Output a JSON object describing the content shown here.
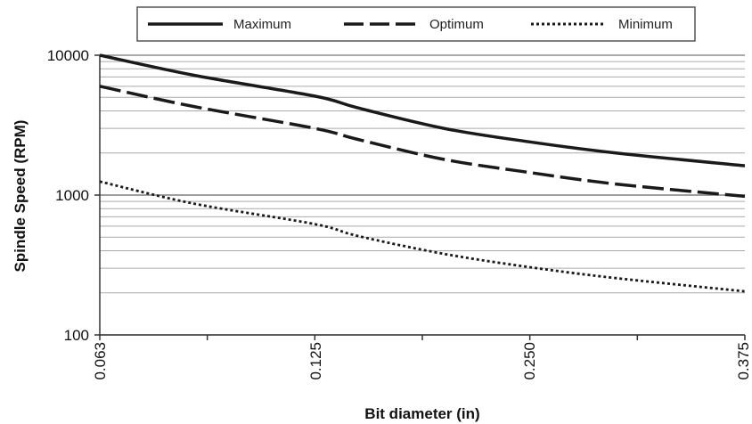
{
  "chart_data": {
    "type": "line",
    "xlabel": "Bit diameter (in)",
    "ylabel": "Spindle Speed (RPM)",
    "x_ticks": [
      "0.063",
      "0.125",
      "0.250",
      "0.375"
    ],
    "x_tick_values": [
      0.063,
      0.125,
      0.25,
      0.375
    ],
    "y_scale": "log",
    "ylim": [
      100,
      10000
    ],
    "y_ticks": [
      "100",
      "1000",
      "10000"
    ],
    "y_tick_values": [
      100,
      1000,
      10000
    ],
    "grid": "horizontal minor log gridlines",
    "legend_position": "top",
    "series": [
      {
        "name": "Maximum",
        "style": "solid",
        "color": "#1a1a1a",
        "x": [
          0.063,
          0.09,
          0.125,
          0.15,
          0.2,
          0.25,
          0.3,
          0.375
        ],
        "y": [
          10000,
          7200,
          5100,
          4200,
          3000,
          2400,
          2000,
          1620
        ]
      },
      {
        "name": "Optimum",
        "style": "dashed",
        "color": "#1a1a1a",
        "x": [
          0.063,
          0.09,
          0.125,
          0.15,
          0.2,
          0.25,
          0.3,
          0.375
        ],
        "y": [
          6000,
          4300,
          3000,
          2500,
          1800,
          1450,
          1200,
          980
        ]
      },
      {
        "name": "Minimum",
        "style": "dotted",
        "color": "#1a1a1a",
        "x": [
          0.063,
          0.09,
          0.125,
          0.15,
          0.2,
          0.25,
          0.3,
          0.375
        ],
        "y": [
          1250,
          870,
          620,
          510,
          380,
          305,
          255,
          205
        ]
      }
    ]
  }
}
